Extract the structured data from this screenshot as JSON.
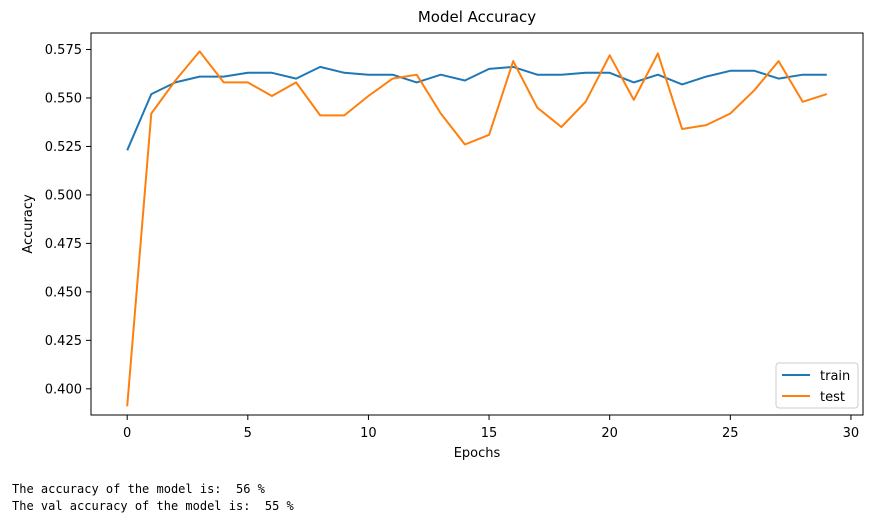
{
  "chart_data": {
    "type": "line",
    "title": "Model Accuracy",
    "xlabel": "Epochs",
    "ylabel": "Accuracy",
    "xlim": [
      -1.5,
      30.5
    ],
    "ylim": [
      0.3865,
      0.5835
    ],
    "xticks": [
      0,
      5,
      10,
      15,
      20,
      25,
      30
    ],
    "yticks": [
      0.4,
      0.425,
      0.45,
      0.475,
      0.5,
      0.525,
      0.55,
      0.575
    ],
    "ytick_labels": [
      "0.400",
      "0.425",
      "0.450",
      "0.475",
      "0.500",
      "0.525",
      "0.550",
      "0.575"
    ],
    "x": [
      0,
      1,
      2,
      3,
      4,
      5,
      6,
      7,
      8,
      9,
      10,
      11,
      12,
      13,
      14,
      15,
      16,
      17,
      18,
      19,
      20,
      21,
      22,
      23,
      24,
      25,
      26,
      27,
      28,
      29
    ],
    "grid": false,
    "legend_position": "lower-right",
    "series": [
      {
        "name": "train",
        "color": "#1f77b4",
        "values": [
          0.523,
          0.552,
          0.558,
          0.561,
          0.561,
          0.563,
          0.563,
          0.56,
          0.566,
          0.563,
          0.562,
          0.562,
          0.558,
          0.562,
          0.559,
          0.565,
          0.566,
          0.562,
          0.562,
          0.563,
          0.563,
          0.558,
          0.562,
          0.557,
          0.561,
          0.564,
          0.564,
          0.56,
          0.562,
          0.562
        ]
      },
      {
        "name": "test",
        "color": "#ff7f0e",
        "values": [
          0.391,
          0.542,
          0.559,
          0.574,
          0.558,
          0.558,
          0.551,
          0.558,
          0.541,
          0.541,
          0.551,
          0.56,
          0.562,
          0.542,
          0.526,
          0.531,
          0.569,
          0.545,
          0.535,
          0.548,
          0.572,
          0.549,
          0.573,
          0.534,
          0.536,
          0.542,
          0.554,
          0.569,
          0.548,
          0.552
        ]
      }
    ]
  },
  "console": {
    "line1": "The accuracy of the model is:  56 %",
    "line2": "The val accuracy of the model is:  55 %"
  }
}
